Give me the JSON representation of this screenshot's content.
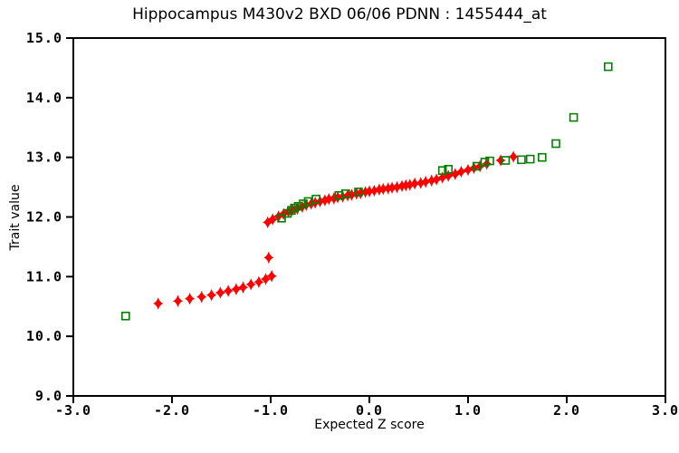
{
  "title": "Hippocampus M430v2 BXD 06/06 PDNN : 1455444_at",
  "colors": {
    "background": "#ffffff",
    "axis": "#000000",
    "text": "#000000",
    "red_marker": "#ff0000",
    "green_marker": "#007f00"
  },
  "chart_data": {
    "type": "scatter",
    "title": "Hippocampus M430v2 BXD 06/06 PDNN : 1455444_at",
    "xlabel": "Expected Z score",
    "ylabel": "Trait value",
    "xlim": [
      -3.0,
      3.0
    ],
    "ylim": [
      9.0,
      15.0
    ],
    "x_ticks": [
      "-3.0",
      "-2.0",
      "-1.0",
      "0.0",
      "1.0",
      "2.0",
      "3.0"
    ],
    "y_ticks": [
      "9.0",
      "10.0",
      "11.0",
      "12.0",
      "13.0",
      "14.0",
      "15.0"
    ],
    "grid": false,
    "legend_position": "none",
    "series": [
      {
        "name": "trait-values-red-diamonds",
        "marker": "filled-diamond",
        "color": "#ff0000",
        "points": [
          [
            -2.14,
            10.55
          ],
          [
            -1.94,
            10.59
          ],
          [
            -1.82,
            10.63
          ],
          [
            -1.7,
            10.66
          ],
          [
            -1.6,
            10.69
          ],
          [
            -1.51,
            10.73
          ],
          [
            -1.43,
            10.76
          ],
          [
            -1.35,
            10.79
          ],
          [
            -1.28,
            10.82
          ],
          [
            -1.2,
            10.87
          ],
          [
            -1.12,
            10.91
          ],
          [
            -1.05,
            10.96
          ],
          [
            -0.99,
            11.01
          ],
          [
            -1.02,
            11.32
          ],
          [
            -1.03,
            11.91
          ],
          [
            -0.98,
            11.96
          ],
          [
            -0.92,
            12.01
          ],
          [
            -0.87,
            12.05
          ],
          [
            -0.82,
            12.09
          ],
          [
            -0.78,
            12.12
          ],
          [
            -0.73,
            12.14
          ],
          [
            -0.68,
            12.17
          ],
          [
            -0.64,
            12.2
          ],
          [
            -0.59,
            12.22
          ],
          [
            -0.55,
            12.24
          ],
          [
            -0.5,
            12.26
          ],
          [
            -0.45,
            12.28
          ],
          [
            -0.41,
            12.3
          ],
          [
            -0.36,
            12.31
          ],
          [
            -0.32,
            12.33
          ],
          [
            -0.27,
            12.34
          ],
          [
            -0.22,
            12.36
          ],
          [
            -0.18,
            12.37
          ],
          [
            -0.13,
            12.39
          ],
          [
            -0.09,
            12.4
          ],
          [
            -0.04,
            12.42
          ],
          [
            0.0,
            12.43
          ],
          [
            0.05,
            12.44
          ],
          [
            0.1,
            12.46
          ],
          [
            0.14,
            12.47
          ],
          [
            0.19,
            12.48
          ],
          [
            0.23,
            12.49
          ],
          [
            0.28,
            12.5
          ],
          [
            0.33,
            12.52
          ],
          [
            0.37,
            12.53
          ],
          [
            0.41,
            12.54
          ],
          [
            0.46,
            12.56
          ],
          [
            0.52,
            12.57
          ],
          [
            0.57,
            12.59
          ],
          [
            0.63,
            12.61
          ],
          [
            0.68,
            12.63
          ],
          [
            0.74,
            12.66
          ],
          [
            0.8,
            12.69
          ],
          [
            0.87,
            12.72
          ],
          [
            0.93,
            12.76
          ],
          [
            1.0,
            12.79
          ],
          [
            1.06,
            12.82
          ],
          [
            1.12,
            12.85
          ],
          [
            1.19,
            12.89
          ],
          [
            1.33,
            12.95
          ],
          [
            1.46,
            13.01
          ]
        ]
      },
      {
        "name": "reference-green-squares",
        "marker": "open-square",
        "color": "#007f00",
        "points": [
          [
            -2.47,
            10.34
          ],
          [
            -0.89,
            11.98
          ],
          [
            -0.83,
            12.06
          ],
          [
            -0.79,
            12.11
          ],
          [
            -0.76,
            12.15
          ],
          [
            -0.72,
            12.18
          ],
          [
            -0.67,
            12.22
          ],
          [
            -0.62,
            12.26
          ],
          [
            -0.54,
            12.3
          ],
          [
            -0.31,
            12.36
          ],
          [
            -0.24,
            12.39
          ],
          [
            -0.11,
            12.42
          ],
          [
            0.74,
            12.78
          ],
          [
            0.8,
            12.8
          ],
          [
            1.09,
            12.85
          ],
          [
            1.17,
            12.92
          ],
          [
            1.22,
            12.94
          ],
          [
            1.38,
            12.95
          ],
          [
            1.54,
            12.96
          ],
          [
            1.63,
            12.97
          ],
          [
            1.75,
            13.0
          ],
          [
            1.89,
            13.23
          ],
          [
            2.07,
            13.67
          ],
          [
            2.42,
            14.52
          ]
        ]
      }
    ]
  }
}
